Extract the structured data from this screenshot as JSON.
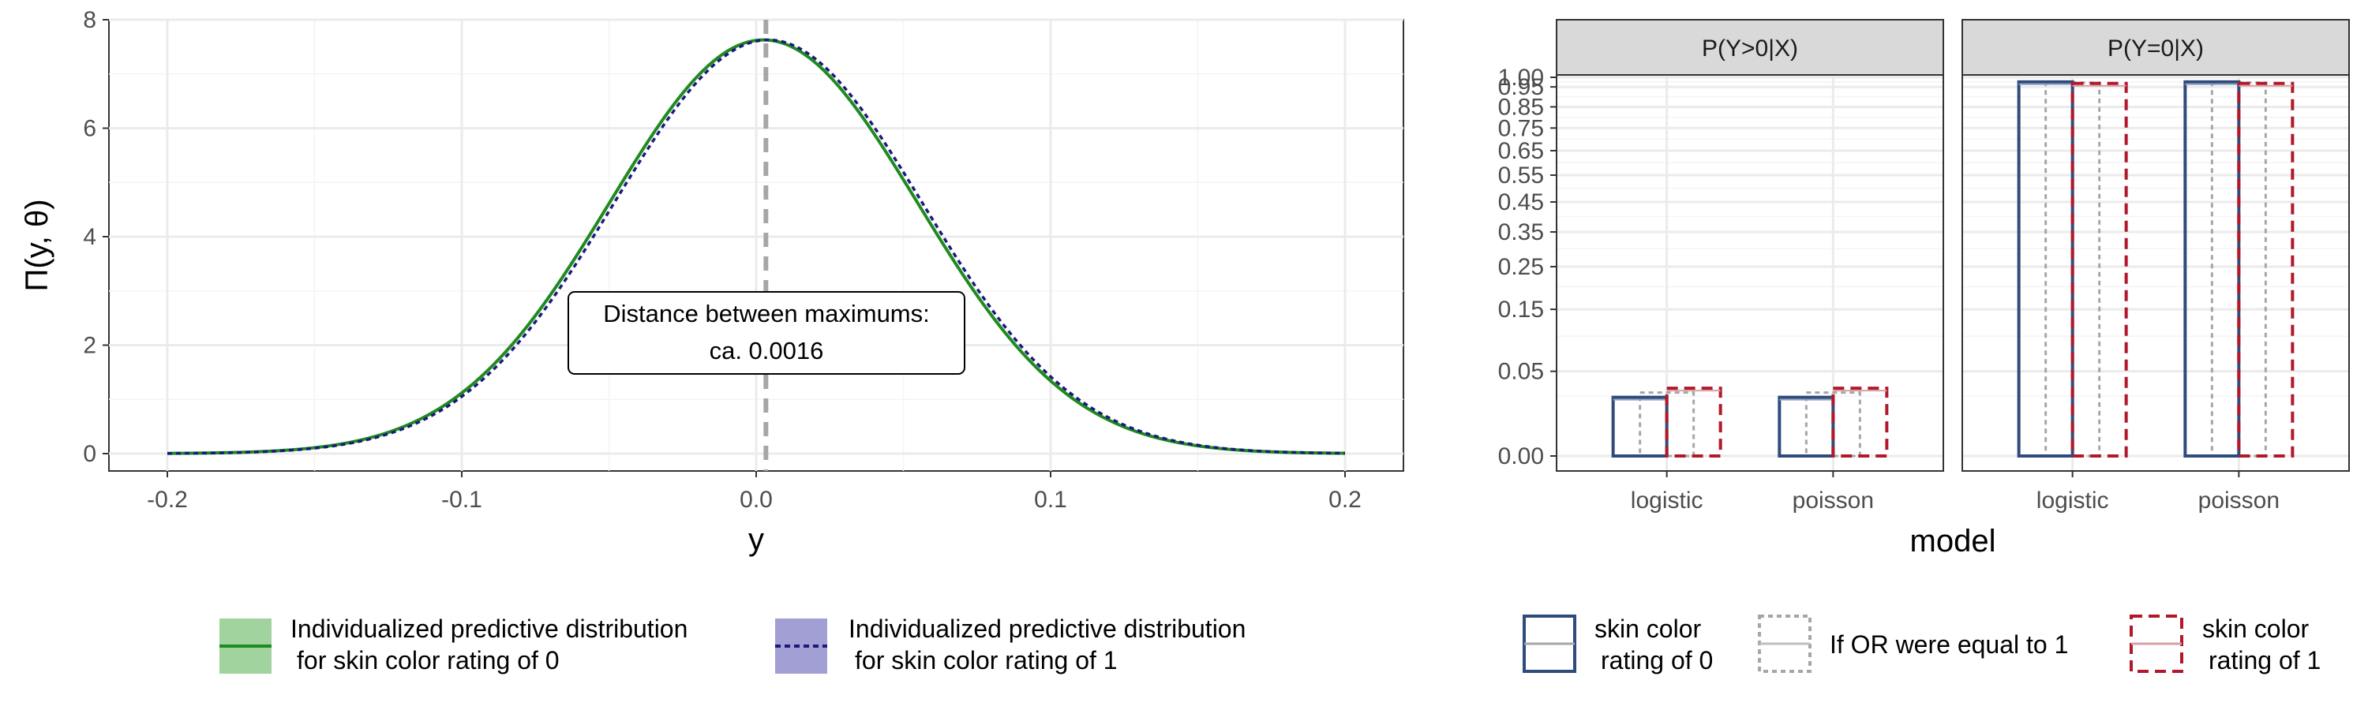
{
  "colors": {
    "group0": "#2f4b7c",
    "group1": "#b2182b",
    "equal": "#a6a6a6",
    "density_fill_0": "#a1d39f",
    "density_fill_1": "#a29fd4",
    "density_line_0": "#1f8a1f",
    "density_line_1": "#1a1a7e"
  },
  "left_panel": {
    "xlabel": "y",
    "ylabel": "Π(y, θ)",
    "annotation": {
      "line1": "Distance between maximums:",
      "line2": "ca. 0.0016"
    },
    "legend": [
      {
        "line1": "Individualized predictive distribution",
        "line2": "for skin color rating of 0"
      },
      {
        "line1": "Individualized predictive distribution",
        "line2": "for skin color rating of 1"
      }
    ]
  },
  "right_panel": {
    "xlabel": "model",
    "legend": [
      {
        "line1": "skin color",
        "line2": "rating of 0"
      },
      {
        "line1": "If OR were equal to 1",
        "line2": ""
      },
      {
        "line1": "skin color",
        "line2": "rating of 1"
      }
    ]
  },
  "chart_data": [
    {
      "type": "line",
      "title": "",
      "xlabel": "y",
      "ylabel": "Π(y, θ)",
      "xlim": [
        -0.2,
        0.2
      ],
      "ylim": [
        0,
        8
      ],
      "x_ticks": [
        -0.2,
        -0.1,
        0.0,
        0.1,
        0.2
      ],
      "x_tick_labels": [
        "-0.2",
        "-0.1",
        "0.0",
        "0.1",
        "0.2"
      ],
      "y_ticks": [
        0,
        2,
        4,
        6,
        8
      ],
      "y_tick_labels": [
        "0",
        "2",
        "4",
        "6",
        "8"
      ],
      "grid": true,
      "series": [
        {
          "name": "Individualized predictive distribution for skin color rating of 0",
          "mean": 0.0025,
          "sd": 0.0523,
          "line_style": "solid"
        },
        {
          "name": "Individualized predictive distribution for skin color rating of 1",
          "mean": 0.0041,
          "sd": 0.0523,
          "line_style": "dotted"
        }
      ],
      "vline": {
        "x": 0.0033,
        "style": "dashed"
      },
      "annotation": "Distance between maximums: ca. 0.0016",
      "legend_position": "bottom"
    },
    {
      "type": "bar",
      "title": "",
      "xlabel": "model",
      "ylabel": "",
      "categories": [
        "logistic",
        "poisson"
      ],
      "y_scale": "sqrt",
      "ylim": [
        0,
        1.0
      ],
      "y_ticks": [
        0.0,
        0.05,
        0.15,
        0.25,
        0.35,
        0.45,
        0.55,
        0.65,
        0.75,
        0.85,
        0.95,
        1.0
      ],
      "y_tick_labels": [
        "0.00",
        "0.05",
        "0.15",
        "0.25",
        "0.35",
        "0.45",
        "0.55",
        "0.65",
        "0.75",
        "0.85",
        "0.95",
        "1.00"
      ],
      "grid": true,
      "facets": [
        {
          "label": "P(Y>0|X)",
          "series": [
            {
              "name": "skin color rating of 0",
              "values": [
                0.024,
                0.024
              ],
              "line_style": "solid"
            },
            {
              "name": "If OR were equal to 1",
              "values": [
                0.028,
                0.028
              ],
              "line_style": "dotted"
            },
            {
              "name": "skin color rating of 1",
              "values": [
                0.032,
                0.032
              ],
              "line_style": "dashed"
            }
          ]
        },
        {
          "label": "P(Y=0|X)",
          "series": [
            {
              "name": "skin color rating of 0",
              "values": [
                0.976,
                0.976
              ],
              "line_style": "solid"
            },
            {
              "name": "If OR were equal to 1",
              "values": [
                0.972,
                0.972
              ],
              "line_style": "dotted"
            },
            {
              "name": "skin color rating of 1",
              "values": [
                0.968,
                0.968
              ],
              "line_style": "dashed"
            }
          ]
        }
      ],
      "legend_position": "bottom"
    }
  ]
}
